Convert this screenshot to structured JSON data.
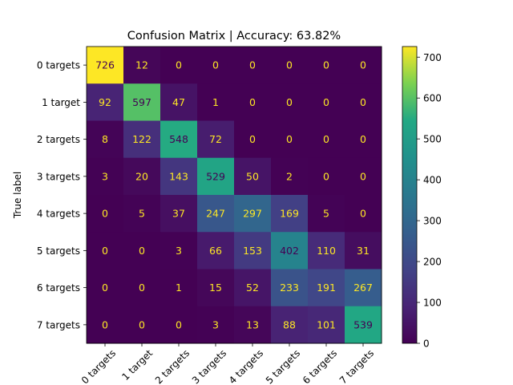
{
  "chart_data": {
    "type": "heatmap",
    "title": "Confusion Matrix | Accuracy: 63.82%",
    "ylabel": "True label",
    "xlabel": "",
    "row_labels": [
      "0 targets",
      "1 target",
      "2 targets",
      "3 targets",
      "4 targets",
      "5 targets",
      "6 targets",
      "7 targets"
    ],
    "col_labels": [
      "0 targets",
      "1 target",
      "2 targets",
      "3 targets",
      "4 targets",
      "5 targets",
      "6 targets",
      "7 targets"
    ],
    "matrix": [
      [
        726,
        12,
        0,
        0,
        0,
        0,
        0,
        0
      ],
      [
        92,
        597,
        47,
        1,
        0,
        0,
        0,
        0
      ],
      [
        8,
        122,
        548,
        72,
        0,
        0,
        0,
        0
      ],
      [
        3,
        20,
        143,
        529,
        50,
        2,
        0,
        0
      ],
      [
        0,
        5,
        37,
        247,
        297,
        169,
        5,
        0
      ],
      [
        0,
        0,
        3,
        66,
        153,
        402,
        110,
        31
      ],
      [
        0,
        0,
        1,
        15,
        52,
        233,
        191,
        267
      ],
      [
        0,
        0,
        0,
        3,
        13,
        88,
        101,
        539
      ]
    ],
    "colormap": "viridis",
    "vmin": 0,
    "vmax": 726,
    "colorbar_ticks": [
      0,
      100,
      200,
      300,
      400,
      500,
      600,
      700
    ],
    "text_color_light": "#fde725",
    "text_color_dark": "#440154"
  }
}
